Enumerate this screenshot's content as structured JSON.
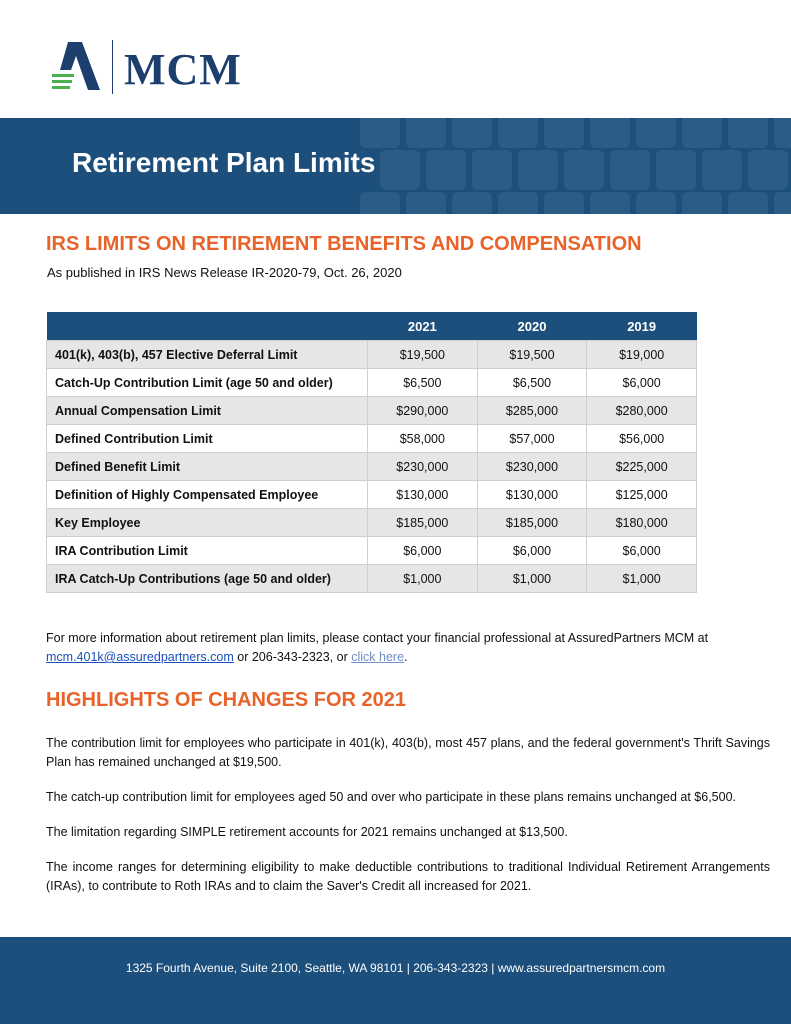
{
  "logo": {
    "text": "MCM"
  },
  "banner": {
    "title": "Retirement Plan Limits"
  },
  "limits": {
    "heading": "IRS LIMITS ON RETIREMENT BENEFITS AND COMPENSATION",
    "subtitle": "As published in IRS News Release IR-2020-79, Oct. 26, 2020"
  },
  "table": {
    "columns": [
      "2021",
      "2020",
      "2019"
    ],
    "rows": [
      [
        "401(k), 403(b), 457 Elective Deferral Limit",
        "$19,500",
        "$19,500",
        "$19,000"
      ],
      [
        "Catch-Up Contribution Limit (age 50 and older)",
        "$6,500",
        "$6,500",
        "$6,000"
      ],
      [
        "Annual Compensation Limit",
        "$290,000",
        "$285,000",
        "$280,000"
      ],
      [
        "Defined Contribution Limit",
        "$58,000",
        "$57,000",
        "$56,000"
      ],
      [
        "Defined Benefit Limit",
        "$230,000",
        "$230,000",
        "$225,000"
      ],
      [
        "Definition of Highly Compensated Employee",
        "$130,000",
        "$130,000",
        "$125,000"
      ],
      [
        "Key Employee",
        "$185,000",
        "$185,000",
        "$180,000"
      ],
      [
        "IRA Contribution Limit",
        "$6,000",
        "$6,000",
        "$6,000"
      ],
      [
        "IRA Catch-Up Contributions (age 50 and older)",
        "$1,000",
        "$1,000",
        "$1,000"
      ]
    ]
  },
  "contact": {
    "text_before": "For more information about retirement plan limits, please contact your financial professional at AssuredPartners MCM at",
    "email": "mcm.401k@assuredpartners.com",
    "text_middle": "or 206-343-2323, or",
    "link": "click here",
    "text_after": "."
  },
  "highlights": {
    "heading": "HIGHLIGHTS OF CHANGES FOR 2021",
    "paragraphs": [
      "The contribution limit for employees who participate in 401(k), 403(b), most 457 plans, and the federal government's Thrift Savings Plan has remained unchanged at $19,500.",
      "The catch-up contribution limit for employees aged 50 and over who participate in these plans remains unchanged at $6,500.",
      "The limitation regarding SIMPLE retirement accounts for 2021 remains unchanged at $13,500.",
      "The income ranges for determining eligibility to make deductible contributions to traditional Individual Retirement Arrangements (IRAs), to contribute to Roth IRAs and to claim the Saver's Credit all increased for 2021."
    ]
  },
  "footer": {
    "text": "1325 Fourth Avenue, Suite 2100, Seattle, WA 98101 | 206-343-2323 | www.assuredpartnersmcm.com"
  }
}
